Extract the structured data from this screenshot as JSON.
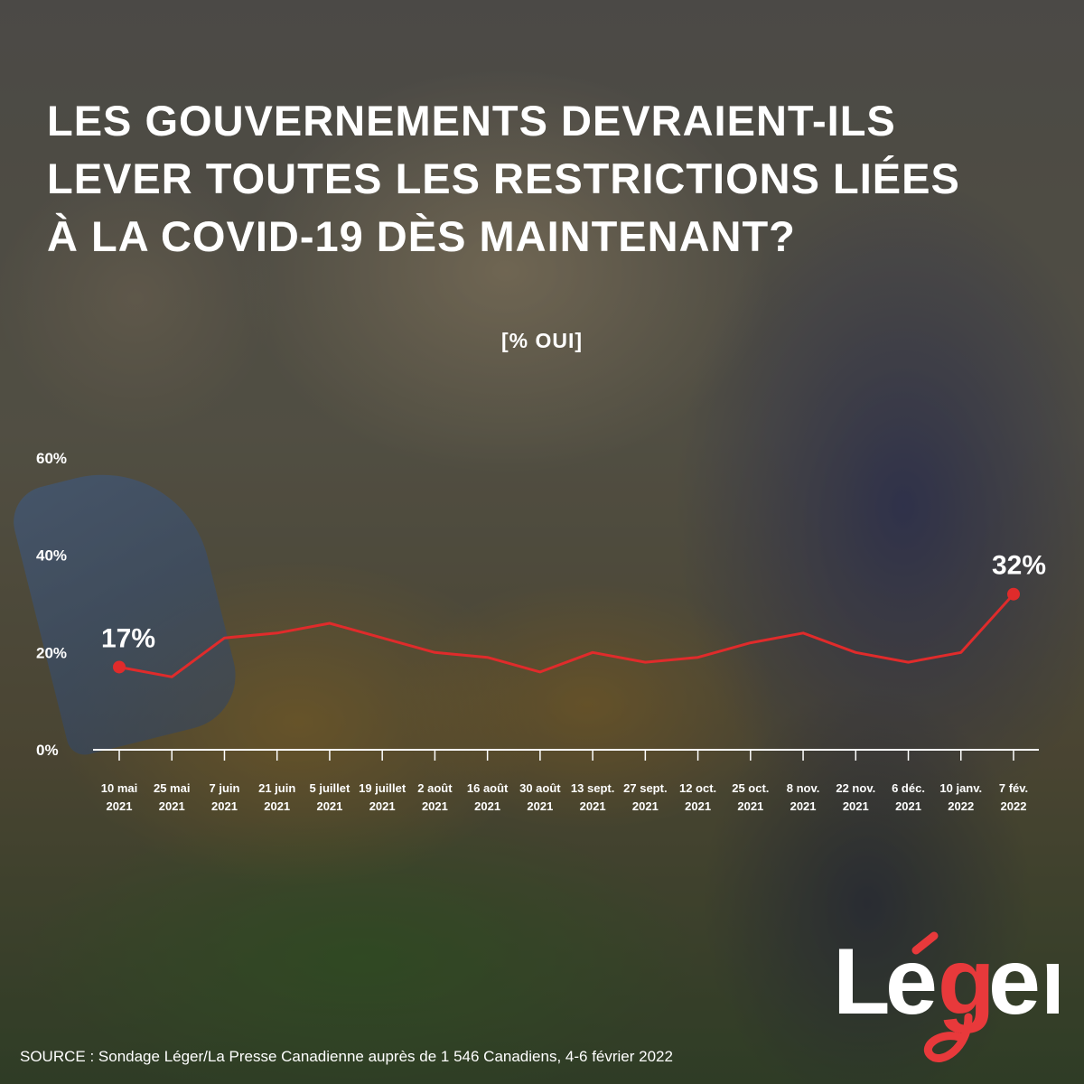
{
  "title_lines": [
    "LES GOUVERNEMENTS DEVRAIENT-ILS",
    "LEVER TOUTES LES RESTRICTIONS LIÉES",
    "À LA COVID-19 DÈS MAINTENANT?"
  ],
  "unit_label": "[% OUI]",
  "source": "SOURCE : Sondage Léger/La Presse Canadienne auprès de 1 546 Canadiens, 4-6 février 2022",
  "logo_text": "Léger",
  "colors": {
    "line": "#e02b2b",
    "text": "#ffffff",
    "logo_accent": "#e8393b"
  },
  "chart_data": {
    "type": "line",
    "title": "LES GOUVERNEMENTS DEVRAIENT-ILS LEVER TOUTES LES RESTRICTIONS LIÉES À LA COVID-19 DÈS MAINTENANT?",
    "ylabel": "[% OUI]",
    "ylim": [
      0,
      60
    ],
    "yticks": [
      "0%",
      "20%",
      "40%",
      "60%"
    ],
    "grid": false,
    "categories": [
      [
        "10 mai",
        "2021"
      ],
      [
        "25 mai",
        "2021"
      ],
      [
        "7 juin",
        "2021"
      ],
      [
        "21 juin",
        "2021"
      ],
      [
        "5 juillet",
        "2021"
      ],
      [
        "19 juillet",
        "2021"
      ],
      [
        "2 août",
        "2021"
      ],
      [
        "16 août",
        "2021"
      ],
      [
        "30 août",
        "2021"
      ],
      [
        "13 sept.",
        "2021"
      ],
      [
        "27 sept.",
        "2021"
      ],
      [
        "12 oct.",
        "2021"
      ],
      [
        "25 oct.",
        "2021"
      ],
      [
        "8 nov.",
        "2021"
      ],
      [
        "22 nov.",
        "2021"
      ],
      [
        "6 déc.",
        "2021"
      ],
      [
        "10 janv.",
        "2022"
      ],
      [
        "7 fév.",
        "2022"
      ]
    ],
    "series": [
      {
        "values": [
          17,
          15,
          23,
          24,
          26,
          23,
          20,
          19,
          16,
          20,
          18,
          19,
          22,
          24,
          20,
          18,
          20,
          32
        ]
      }
    ],
    "data_labels": [
      {
        "index": 0,
        "text": "17%"
      },
      {
        "index": 17,
        "text": "32%"
      }
    ]
  }
}
